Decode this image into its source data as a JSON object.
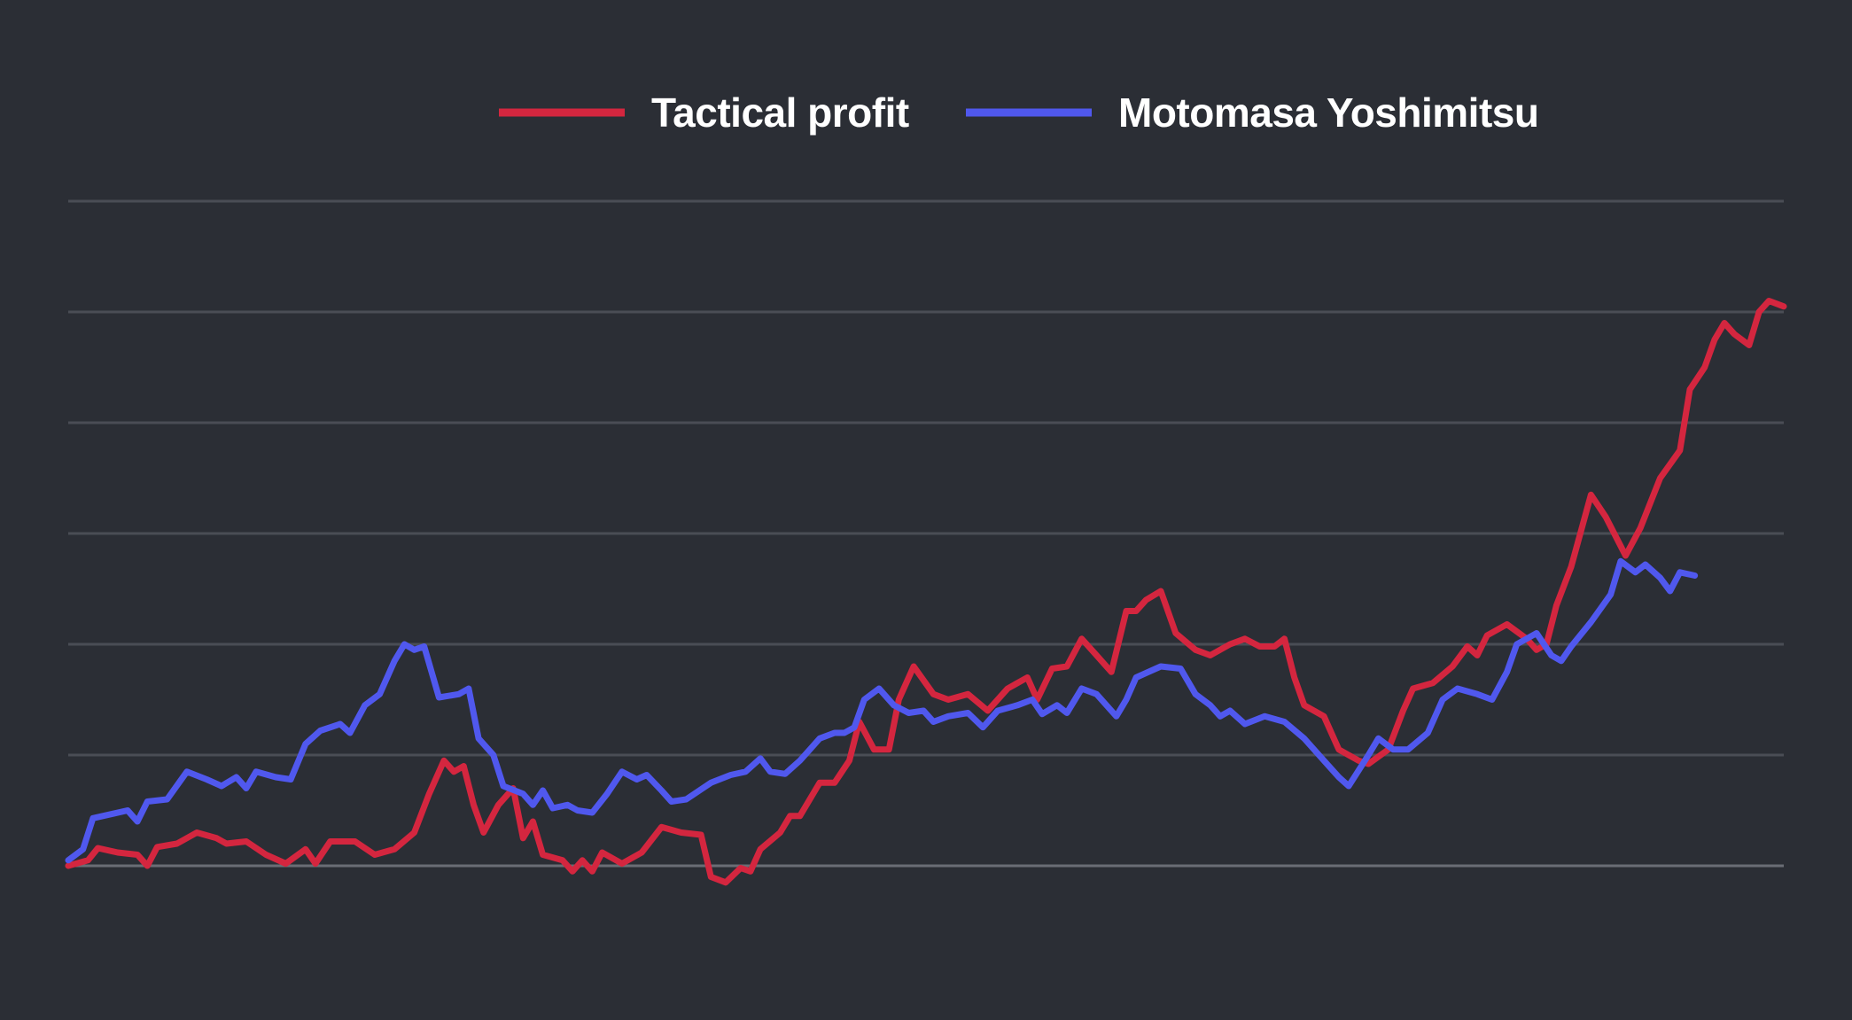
{
  "chart_data": {
    "type": "line",
    "title": "",
    "xlabel": "",
    "ylabel": "",
    "ylim": [
      0,
      6
    ],
    "grid": true,
    "gridlines": [
      0,
      1,
      2,
      3,
      4,
      5,
      6
    ],
    "legend_position": "top-center",
    "background_color": "#2b2e35",
    "grid_color": "#4a4d55",
    "baseline_color": "#6a6d75",
    "x_count": 225,
    "series": [
      {
        "name": "Tactical profit",
        "color": "#d4263f",
        "anchors": [
          [
            0,
            0.0
          ],
          [
            4,
            0.05
          ],
          [
            6,
            0.16
          ],
          [
            10,
            0.12
          ],
          [
            14,
            0.1
          ],
          [
            16,
            0.0
          ],
          [
            18,
            0.17
          ],
          [
            22,
            0.2
          ],
          [
            26,
            0.3
          ],
          [
            30,
            0.25
          ],
          [
            32,
            0.2
          ],
          [
            36,
            0.22
          ],
          [
            40,
            0.1
          ],
          [
            44,
            0.02
          ],
          [
            48,
            0.15
          ],
          [
            50,
            0.02
          ],
          [
            53,
            0.22
          ],
          [
            58,
            0.22
          ],
          [
            62,
            0.1
          ],
          [
            66,
            0.15
          ],
          [
            70,
            0.3
          ],
          [
            73,
            0.65
          ],
          [
            76,
            0.95
          ],
          [
            78,
            0.85
          ],
          [
            80,
            0.9
          ],
          [
            82,
            0.55
          ],
          [
            84,
            0.3
          ],
          [
            87,
            0.55
          ],
          [
            90,
            0.7
          ],
          [
            92,
            0.25
          ],
          [
            94,
            0.4
          ],
          [
            96,
            0.1
          ],
          [
            100,
            0.05
          ],
          [
            102,
            -0.05
          ],
          [
            104,
            0.05
          ],
          [
            106,
            -0.05
          ],
          [
            108,
            0.12
          ],
          [
            112,
            0.02
          ],
          [
            116,
            0.12
          ],
          [
            120,
            0.35
          ],
          [
            124,
            0.3
          ],
          [
            128,
            0.28
          ],
          [
            130,
            -0.1
          ],
          [
            133,
            -0.15
          ],
          [
            136,
            -0.02
          ],
          [
            138,
            -0.05
          ],
          [
            140,
            0.15
          ],
          [
            144,
            0.3
          ],
          [
            146,
            0.45
          ],
          [
            148,
            0.45
          ],
          [
            152,
            0.75
          ],
          [
            155,
            0.75
          ],
          [
            158,
            0.95
          ],
          [
            160,
            1.3
          ],
          [
            163,
            1.05
          ],
          [
            166,
            1.05
          ],
          [
            168,
            1.5
          ],
          [
            171,
            1.8
          ],
          [
            175,
            1.55
          ],
          [
            178,
            1.5
          ],
          [
            182,
            1.55
          ],
          [
            186,
            1.4
          ],
          [
            190,
            1.6
          ],
          [
            194,
            1.7
          ],
          [
            196,
            1.5
          ],
          [
            199,
            1.78
          ],
          [
            202,
            1.8
          ],
          [
            205,
            2.05
          ],
          [
            208,
            1.9
          ],
          [
            211,
            1.75
          ],
          [
            214,
            2.3
          ],
          [
            216,
            2.3
          ],
          [
            218,
            2.4
          ],
          [
            221,
            2.48
          ],
          [
            224,
            2.1
          ],
          [
            228,
            1.95
          ],
          [
            231,
            1.9
          ],
          [
            235,
            2.0
          ],
          [
            238,
            2.05
          ],
          [
            241,
            1.98
          ],
          [
            244,
            1.98
          ],
          [
            246,
            2.05
          ],
          [
            248,
            1.7
          ],
          [
            250,
            1.45
          ],
          [
            254,
            1.35
          ],
          [
            257,
            1.05
          ],
          [
            261,
            0.95
          ],
          [
            263,
            0.92
          ],
          [
            267,
            1.05
          ],
          [
            270,
            1.4
          ],
          [
            272,
            1.6
          ],
          [
            276,
            1.65
          ],
          [
            280,
            1.8
          ],
          [
            283,
            1.98
          ],
          [
            285,
            1.9
          ],
          [
            287,
            2.08
          ],
          [
            291,
            2.18
          ],
          [
            295,
            2.05
          ],
          [
            297,
            1.95
          ],
          [
            299,
            2.0
          ],
          [
            301,
            2.35
          ],
          [
            304,
            2.7
          ],
          [
            308,
            3.35
          ],
          [
            311,
            3.15
          ],
          [
            315,
            2.8
          ],
          [
            318,
            3.05
          ],
          [
            322,
            3.5
          ],
          [
            326,
            3.75
          ],
          [
            328,
            4.3
          ],
          [
            331,
            4.5
          ],
          [
            333,
            4.75
          ],
          [
            335,
            4.9
          ],
          [
            337,
            4.8
          ],
          [
            340,
            4.7
          ],
          [
            342,
            5.0
          ],
          [
            344,
            5.1
          ],
          [
            347,
            5.05
          ]
        ]
      },
      {
        "name": "Motomasa Yoshimitsu",
        "color": "#5058ee",
        "anchors": [
          [
            0,
            0.05
          ],
          [
            3,
            0.15
          ],
          [
            5,
            0.43
          ],
          [
            9,
            0.47
          ],
          [
            12,
            0.5
          ],
          [
            14,
            0.4
          ],
          [
            16,
            0.58
          ],
          [
            20,
            0.6
          ],
          [
            24,
            0.85
          ],
          [
            28,
            0.78
          ],
          [
            31,
            0.72
          ],
          [
            34,
            0.8
          ],
          [
            36,
            0.7
          ],
          [
            38,
            0.85
          ],
          [
            42,
            0.8
          ],
          [
            45,
            0.78
          ],
          [
            48,
            1.1
          ],
          [
            51,
            1.22
          ],
          [
            55,
            1.28
          ],
          [
            57,
            1.2
          ],
          [
            60,
            1.45
          ],
          [
            63,
            1.55
          ],
          [
            66,
            1.85
          ],
          [
            68,
            2.0
          ],
          [
            70,
            1.95
          ],
          [
            72,
            1.98
          ],
          [
            75,
            1.52
          ],
          [
            79,
            1.55
          ],
          [
            81,
            1.6
          ],
          [
            83,
            1.15
          ],
          [
            86,
            1.0
          ],
          [
            88,
            0.72
          ],
          [
            92,
            0.65
          ],
          [
            94,
            0.55
          ],
          [
            96,
            0.68
          ],
          [
            98,
            0.52
          ],
          [
            101,
            0.55
          ],
          [
            103,
            0.5
          ],
          [
            106,
            0.48
          ],
          [
            109,
            0.65
          ],
          [
            112,
            0.85
          ],
          [
            115,
            0.78
          ],
          [
            117,
            0.82
          ],
          [
            120,
            0.68
          ],
          [
            122,
            0.58
          ],
          [
            125,
            0.6
          ],
          [
            130,
            0.75
          ],
          [
            134,
            0.82
          ],
          [
            137,
            0.85
          ],
          [
            140,
            0.97
          ],
          [
            142,
            0.85
          ],
          [
            145,
            0.83
          ],
          [
            148,
            0.95
          ],
          [
            150,
            1.05
          ],
          [
            152,
            1.15
          ],
          [
            155,
            1.2
          ],
          [
            157,
            1.2
          ],
          [
            159,
            1.25
          ],
          [
            161,
            1.5
          ],
          [
            164,
            1.6
          ],
          [
            167,
            1.45
          ],
          [
            170,
            1.38
          ],
          [
            173,
            1.4
          ],
          [
            175,
            1.3
          ],
          [
            178,
            1.35
          ],
          [
            182,
            1.38
          ],
          [
            185,
            1.25
          ],
          [
            188,
            1.4
          ],
          [
            192,
            1.45
          ],
          [
            195,
            1.5
          ],
          [
            197,
            1.37
          ],
          [
            200,
            1.45
          ],
          [
            202,
            1.38
          ],
          [
            205,
            1.6
          ],
          [
            208,
            1.55
          ],
          [
            212,
            1.35
          ],
          [
            214,
            1.5
          ],
          [
            216,
            1.7
          ],
          [
            221,
            1.8
          ],
          [
            225,
            1.78
          ],
          [
            228,
            1.55
          ],
          [
            231,
            1.45
          ],
          [
            233,
            1.35
          ],
          [
            235,
            1.4
          ],
          [
            238,
            1.28
          ],
          [
            242,
            1.35
          ],
          [
            246,
            1.3
          ],
          [
            250,
            1.15
          ],
          [
            254,
            0.95
          ],
          [
            257,
            0.8
          ],
          [
            259,
            0.72
          ],
          [
            263,
            1.0
          ],
          [
            265,
            1.15
          ],
          [
            268,
            1.05
          ],
          [
            271,
            1.05
          ],
          [
            275,
            1.2
          ],
          [
            278,
            1.5
          ],
          [
            281,
            1.6
          ],
          [
            285,
            1.55
          ],
          [
            288,
            1.5
          ],
          [
            291,
            1.75
          ],
          [
            293,
            2.0
          ],
          [
            297,
            2.1
          ],
          [
            300,
            1.9
          ],
          [
            302,
            1.85
          ],
          [
            304,
            1.98
          ],
          [
            308,
            2.2
          ],
          [
            312,
            2.45
          ],
          [
            314,
            2.75
          ],
          [
            317,
            2.65
          ],
          [
            319,
            2.72
          ],
          [
            322,
            2.6
          ],
          [
            324,
            2.48
          ],
          [
            326,
            2.65
          ],
          [
            329,
            2.62
          ]
        ]
      }
    ]
  }
}
